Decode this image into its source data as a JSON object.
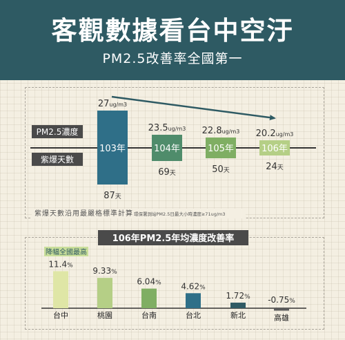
{
  "header": {
    "title": "客觀數據看台中空汙",
    "subtitle": "PM2.5改善率全國第一"
  },
  "top_section": {
    "row_label_pm25": "PM2.5濃度",
    "row_label_days": "紫爆天數",
    "footnote_main": "紫爆天數沿用最嚴格標準計算",
    "footnote_small": "環保署測站PM2.5日最大小時濃度≥71ug/m3",
    "unit_conc": "ug/m3",
    "unit_days": "天"
  },
  "bottom_section": {
    "title": "106年PM2.5年均濃度改善率",
    "badge": "降幅全國最高"
  },
  "colors": {
    "header_bg": "#2e5a63",
    "dark_blue": "#2f6f88",
    "green": "#4f8c6b",
    "mid_green": "#7fae63",
    "light_green": "#b5cf86",
    "dark_teal": "#2f5a63",
    "grey": "#5b5b5b"
  },
  "chart_data": [
    {
      "type": "bar",
      "categories": [
        "103年",
        "104年",
        "105年",
        "106年"
      ],
      "series": [
        {
          "name": "PM2.5濃度",
          "values": [
            27,
            23.5,
            22.8,
            20.2
          ],
          "unit": "ug/m3"
        },
        {
          "name": "紫爆天數",
          "values": [
            87,
            69,
            50,
            24
          ],
          "unit": "天"
        }
      ],
      "value_labels": [
        "27",
        "23.5",
        "22.8",
        "20.2"
      ],
      "day_labels": [
        "87",
        "69",
        "50",
        "24"
      ],
      "bar_colors": [
        "#2f6f88",
        "#4f8c6b",
        "#7fae63",
        "#b5cf86"
      ],
      "trend": "down"
    },
    {
      "type": "bar",
      "title": "106年PM2.5年均濃度改善率",
      "categories": [
        "台中",
        "桃園",
        "台南",
        "台北",
        "新北",
        "高雄"
      ],
      "values": [
        11.4,
        9.33,
        6.04,
        4.62,
        1.72,
        -0.75
      ],
      "value_labels": [
        "11.4",
        "9.33",
        "6.04",
        "4.62",
        "1.72",
        "-0.75"
      ],
      "unit": "%",
      "bar_colors": [
        "#dfe6a6",
        "#b5cf86",
        "#7fae63",
        "#2f6f88",
        "#2f5a63",
        "#5b5b5b"
      ],
      "ylim": [
        -1,
        12
      ]
    }
  ]
}
